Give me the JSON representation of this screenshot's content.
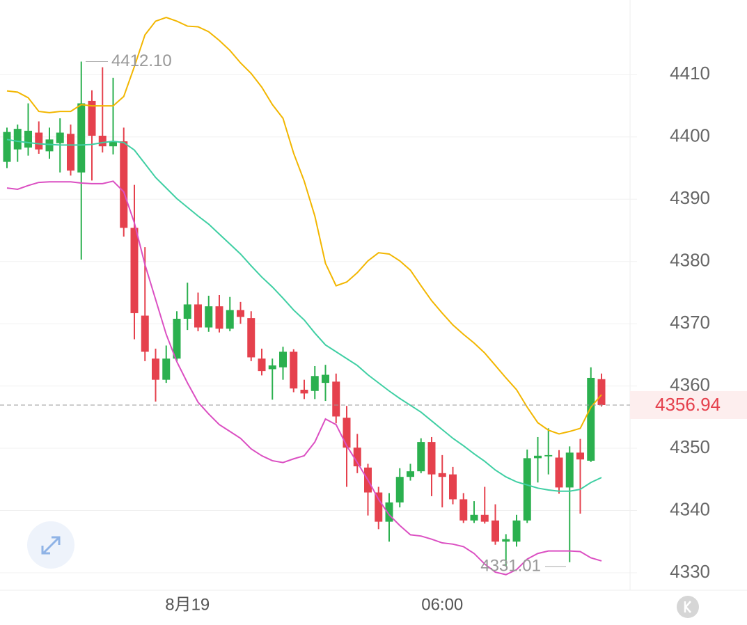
{
  "chart_data": {
    "type": "candlestick",
    "categories": [
      null,
      null,
      null,
      null,
      null,
      null,
      null,
      null,
      null,
      null,
      null,
      null,
      null,
      null,
      null,
      null,
      null,
      "8月19",
      null,
      null,
      null,
      null,
      null,
      null,
      null,
      null,
      null,
      null,
      null,
      null,
      null,
      null,
      null,
      null,
      null,
      null,
      null,
      null,
      null,
      null,
      null,
      "06:00",
      null,
      null,
      null,
      null,
      null,
      null,
      null,
      null,
      null,
      null,
      null,
      null,
      null,
      null,
      null
    ],
    "open": [
      4396,
      4398,
      4398.3,
      4400.7,
      4397.7,
      4399,
      4400.5,
      4394.3,
      4405.8,
      4400.2,
      4398.5,
      4399.3,
      4385.4,
      4371.3,
      4364.4,
      4361,
      4364.4,
      4370.8,
      4373.1,
      4369.4,
      4372.8,
      4369.2,
      4372.2,
      4370.9,
      4364.4,
      4362.7,
      4363,
      4365.5,
      4359.4,
      4359.2,
      4360.5,
      4360.7,
      4354.9,
      4350.1,
      4346.9,
      4342.9,
      4338.2,
      4341.3,
      4345.4,
      4346.3,
      4351,
      4346,
      4345.8,
      4341.8,
      4338.4,
      4339.3,
      4338.4,
      4335,
      4335,
      4338.4,
      4348.4,
      4348.7,
      4348.5,
      4343.7,
      4349.3,
      4348,
      4361.1
    ],
    "high": [
      4401.5,
      4402,
      4405.4,
      4402.5,
      4401.5,
      4403,
      4402,
      4412.1,
      4407.5,
      4411.2,
      4409.5,
      4401.5,
      4392.3,
      4382.3,
      4366,
      4366.5,
      4372,
      4376.6,
      4375,
      4374.5,
      4374.6,
      4374.3,
      4373.5,
      4372,
      4366,
      4364.4,
      4366.3,
      4365.9,
      4361,
      4363.2,
      4363.4,
      4362,
      4356.8,
      4352.3,
      4347.5,
      4343.8,
      4342.8,
      4346.8,
      4347.5,
      4351.6,
      4351.8,
      4348.9,
      4347,
      4342.8,
      4341.5,
      4343.8,
      4341,
      4336.2,
      4339.3,
      4349.8,
      4351.8,
      4353.2,
      4349.7,
      4350.3,
      4351.5,
      4363,
      4362
    ],
    "low": [
      4395,
      4396,
      4397,
      4397.3,
      4396.5,
      4394.3,
      4393.8,
      4380.3,
      4393,
      4397.5,
      4397.2,
      4384,
      4367.5,
      4364,
      4357.5,
      4360.5,
      4364,
      4369,
      4368.8,
      4368.7,
      4368.6,
      4368.8,
      4370,
      4364,
      4361.7,
      4357.8,
      4361,
      4359,
      4357.9,
      4357.9,
      4357.6,
      4354,
      4343.8,
      4346,
      4339.2,
      4337,
      4335,
      4340.5,
      4344.8,
      4346,
      4342.3,
      4340.5,
      4341,
      4338,
      4338,
      4337.9,
      4334.5,
      4331.01,
      4334.2,
      4338,
      4344.5,
      4345.8,
      4342.7,
      4331.7,
      4339.5,
      4347.8,
      4356.7
    ],
    "close": [
      4400.8,
      4401.3,
      4401,
      4398,
      4399.6,
      4400.7,
      4394.6,
      4405.4,
      4400.2,
      4398.5,
      4399.3,
      4385.4,
      4371.7,
      4365.5,
      4361,
      4364.4,
      4370.8,
      4373.1,
      4369.4,
      4372.8,
      4369.2,
      4372.2,
      4371.1,
      4364.6,
      4362.4,
      4363.3,
      4365.5,
      4359.6,
      4358.8,
      4361.6,
      4361.8,
      4355.1,
      4350.1,
      4347.1,
      4342.9,
      4338.2,
      4341.3,
      4345.4,
      4346.3,
      4351,
      4345.8,
      4345.4,
      4341.8,
      4338.4,
      4339.3,
      4338.2,
      4335,
      4335.4,
      4338.4,
      4348.4,
      4348.8,
      4348.9,
      4343.7,
      4349.3,
      4348.2,
      4361.3,
      4356.94
    ],
    "up_color": "#2bb04f",
    "down_color": "#e5414d",
    "lines": [
      {
        "color": "#f2b600",
        "values": [
          4407.4,
          4407.2,
          4406.3,
          4404.1,
          4403.9,
          4404.1,
          4404.1,
          4405.2,
          4405,
          4405,
          4405,
          4406.5,
          4411.3,
          4416.4,
          4418.6,
          4419.2,
          4418.6,
          4417.8,
          4417.7,
          4416.9,
          4415.5,
          4413.9,
          4411.9,
          4410.2,
          4408,
          4405.2,
          4403,
          4397.4,
          4392.9,
          4387.3,
          4379.7,
          4376.1,
          4376.7,
          4378.2,
          4380.1,
          4381.4,
          4381.2,
          4380.1,
          4378.6,
          4376.1,
          4373.7,
          4371.7,
          4369.8,
          4368.3,
          4366.9,
          4365.3,
          4363.3,
          4361.3,
          4359.4,
          4356.6,
          4354.1,
          4352.9,
          4352.3,
          4352.7,
          4353.2,
          4356.6,
          4358.6
        ]
      },
      {
        "color": "#3fcfa3",
        "values": [
          4399.6,
          4399.3,
          4399.1,
          4398.9,
          4398.8,
          4398.7,
          4398.7,
          4398.7,
          4398.8,
          4399.1,
          4399.3,
          4399.1,
          4397.9,
          4395.7,
          4393.5,
          4391.8,
          4390.1,
          4388.7,
          4387.3,
          4386,
          4384.4,
          4382.8,
          4381.2,
          4379.3,
          4377.5,
          4375.9,
          4374.1,
          4372.2,
          4370.6,
          4368.5,
          4366.6,
          4365.5,
          4364.4,
          4363.3,
          4361.8,
          4360.5,
          4359.2,
          4358,
          4356.9,
          4355.8,
          4354.4,
          4353,
          4351.6,
          4350.4,
          4349.1,
          4347.9,
          4346.5,
          4345.4,
          4344.6,
          4344.1,
          4343.6,
          4343.3,
          4343.1,
          4343.1,
          4343.4,
          4344.5,
          4345.3
        ]
      },
      {
        "color": "#db4fc2",
        "values": [
          4391.8,
          4391.6,
          4392.2,
          4392.7,
          4392.8,
          4392.8,
          4392.8,
          4392.6,
          4392.5,
          4392.5,
          4392.9,
          4391.2,
          4386.2,
          4379.5,
          4373.9,
          4368.3,
          4363.9,
          4360.5,
          4357.4,
          4355.5,
          4353.8,
          4352.7,
          4351.6,
          4349.9,
          4348.8,
          4348,
          4347.7,
          4348.3,
          4348.8,
          4351,
          4354.7,
          4353.8,
          4350.4,
          4347.7,
          4344.9,
          4341.8,
          4339.3,
          4337.6,
          4336.1,
          4335.9,
          4335.4,
          4334.8,
          4334.6,
          4334.2,
          4333.1,
          4331.4,
          4330.1,
          4329.7,
          4330.5,
          4332.2,
          4333.1,
          4333.5,
          4333.5,
          4333.5,
          4333.4,
          4332.4,
          4331.9
        ]
      }
    ],
    "ylim": [
      4327.2,
      4422
    ],
    "yticks": [
      4330,
      4340,
      4350,
      4360,
      4370,
      4380,
      4390,
      4400,
      4410
    ],
    "grid": true,
    "last_price": 4356.94,
    "max_label": {
      "value": 4412.1,
      "label": "4412.10"
    },
    "min_label": 4331.01
  }
}
